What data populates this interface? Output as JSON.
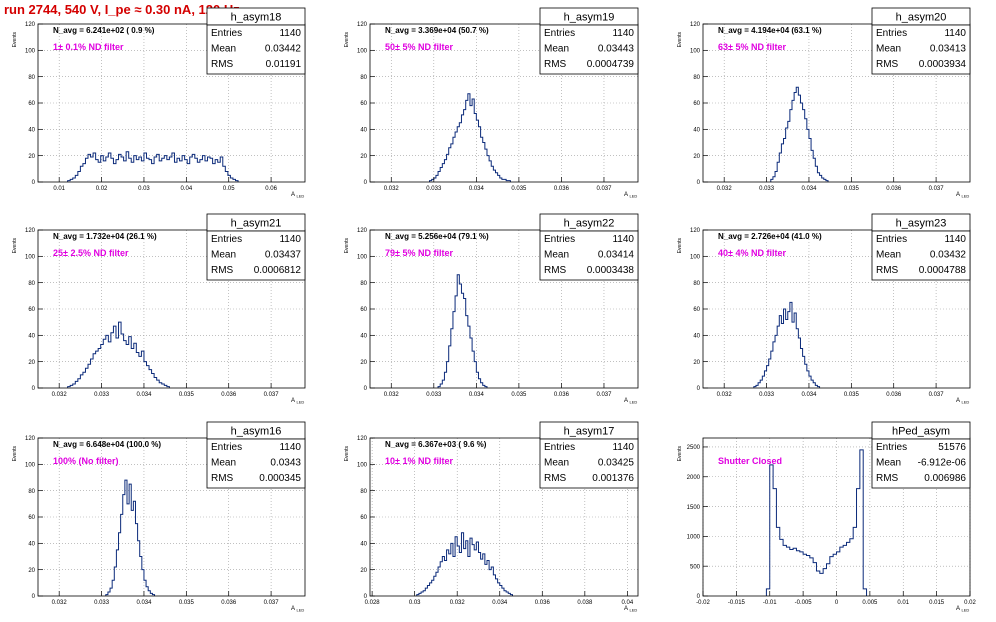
{
  "page_title": "run 2744,   540 V, I_pe ≈ 0.30 nA, 120 Hz",
  "chart_data": [
    {
      "type": "histogram",
      "name": "h_asym18",
      "stats": {
        "entries": "1140",
        "mean": "0.03442",
        "rms": "0.01191"
      },
      "navg": "N_avg = 6.241e+02 ( 0.9 %)",
      "filter": "1± 0.1% ND filter",
      "xlabel": "A",
      "xlabel_sub": "LED",
      "ylabel": "Events",
      "xlim": [
        0.005,
        0.068
      ],
      "ylim": [
        0,
        120
      ],
      "xticks": [
        0.01,
        0.02,
        0.03,
        0.04,
        0.05,
        0.06
      ],
      "xtick_labels": [
        "0.01",
        "0.02",
        "0.03",
        "0.04",
        "0.05",
        "0.06"
      ],
      "yticks": [
        0,
        20,
        40,
        60,
        80,
        100,
        120
      ],
      "ytick_labels": [
        "0",
        "20",
        "40",
        "60",
        "80",
        "100",
        "120"
      ],
      "grid": true,
      "bins": {
        "start": 0.012,
        "width": 0.0006,
        "values": [
          1,
          2,
          3,
          5,
          8,
          12,
          14,
          18,
          21,
          19,
          22,
          17,
          15,
          20,
          16,
          19,
          22,
          18,
          14,
          17,
          21,
          19,
          16,
          23,
          18,
          15,
          20,
          17,
          19,
          16,
          22,
          18,
          17,
          14,
          19,
          21,
          16,
          18,
          20,
          17,
          19,
          22,
          15,
          18,
          16,
          20,
          17,
          14,
          19,
          21,
          18,
          15,
          17,
          20,
          16,
          19,
          18,
          14,
          17,
          15,
          19,
          12,
          8,
          5,
          3,
          2,
          1
        ]
      }
    },
    {
      "type": "histogram",
      "name": "h_asym19",
      "stats": {
        "entries": "1140",
        "mean": "0.03443",
        "rms": "0.0004739"
      },
      "navg": "N_avg = 3.369e+04 (50.7 %)",
      "filter": "50± 5% ND filter",
      "xlabel": "A",
      "xlabel_sub": "LED",
      "ylabel": "Events",
      "xlim": [
        0.0315,
        0.0378
      ],
      "ylim": [
        0,
        120
      ],
      "xticks": [
        0.032,
        0.033,
        0.034,
        0.035,
        0.036,
        0.037
      ],
      "xtick_labels": [
        "0.032",
        "0.033",
        "0.034",
        "0.035",
        "0.036",
        "0.037"
      ],
      "yticks": [
        0,
        20,
        40,
        60,
        80,
        100,
        120
      ],
      "ytick_labels": [
        "0",
        "20",
        "40",
        "60",
        "80",
        "100",
        "120"
      ],
      "grid": true,
      "bins": {
        "start": 0.0329,
        "width": 5e-05,
        "values": [
          1,
          2,
          3,
          5,
          8,
          11,
          14,
          17,
          21,
          26,
          29,
          34,
          38,
          42,
          45,
          51,
          55,
          62,
          67,
          58,
          63,
          52,
          47,
          42,
          34,
          30,
          25,
          20,
          16,
          12,
          9,
          7,
          5,
          3,
          2,
          2,
          1,
          1
        ]
      }
    },
    {
      "type": "histogram",
      "name": "h_asym20",
      "stats": {
        "entries": "1140",
        "mean": "0.03413",
        "rms": "0.0003934"
      },
      "navg": "N_avg = 4.194e+04 (63.1 %)",
      "filter": "63± 5% ND filter",
      "xlabel": "A",
      "xlabel_sub": "LED",
      "ylabel": "Events",
      "xlim": [
        0.0315,
        0.0378
      ],
      "ylim": [
        0,
        120
      ],
      "xticks": [
        0.032,
        0.033,
        0.034,
        0.035,
        0.036,
        0.037
      ],
      "xtick_labels": [
        "0.032",
        "0.033",
        "0.034",
        "0.035",
        "0.036",
        "0.037"
      ],
      "yticks": [
        0,
        20,
        40,
        60,
        80,
        100,
        120
      ],
      "ytick_labels": [
        "0",
        "20",
        "40",
        "60",
        "80",
        "100",
        "120"
      ],
      "grid": true,
      "bins": {
        "start": 0.0331,
        "width": 5e-05,
        "values": [
          2,
          4,
          8,
          15,
          22,
          29,
          33,
          41,
          46,
          55,
          62,
          68,
          72,
          66,
          60,
          55,
          48,
          40,
          33,
          24,
          18,
          12,
          7,
          5,
          3,
          2,
          1
        ]
      }
    },
    {
      "type": "histogram",
      "name": "h_asym21",
      "stats": {
        "entries": "1140",
        "mean": "0.03437",
        "rms": "0.0006812"
      },
      "navg": "N_avg = 1.732e+04 (26.1 %)",
      "filter": "25± 2.5% ND filter",
      "xlabel": "A",
      "xlabel_sub": "LED",
      "ylabel": "Events",
      "xlim": [
        0.0315,
        0.0378
      ],
      "ylim": [
        0,
        120
      ],
      "xticks": [
        0.032,
        0.033,
        0.034,
        0.035,
        0.036,
        0.037
      ],
      "xtick_labels": [
        "0.032",
        "0.033",
        "0.034",
        "0.035",
        "0.036",
        "0.037"
      ],
      "yticks": [
        0,
        20,
        40,
        60,
        80,
        100,
        120
      ],
      "ytick_labels": [
        "0",
        "20",
        "40",
        "60",
        "80",
        "100",
        "120"
      ],
      "grid": true,
      "bins": {
        "start": 0.0322,
        "width": 6e-05,
        "values": [
          1,
          2,
          3,
          5,
          7,
          10,
          12,
          15,
          18,
          22,
          26,
          28,
          30,
          33,
          37,
          40,
          35,
          42,
          47,
          38,
          50,
          41,
          36,
          33,
          39,
          30,
          34,
          27,
          24,
          28,
          20,
          17,
          14,
          11,
          8,
          6,
          4,
          3,
          2,
          1
        ]
      }
    },
    {
      "type": "histogram",
      "name": "h_asym22",
      "stats": {
        "entries": "1140",
        "mean": "0.03414",
        "rms": "0.0003438"
      },
      "navg": "N_avg = 5.256e+04 (79.1 %)",
      "filter": "79± 5% ND filter",
      "xlabel": "A",
      "xlabel_sub": "LED",
      "ylabel": "Events",
      "xlim": [
        0.0315,
        0.0378
      ],
      "ylim": [
        0,
        120
      ],
      "xticks": [
        0.032,
        0.033,
        0.034,
        0.035,
        0.036,
        0.037
      ],
      "xtick_labels": [
        "0.032",
        "0.033",
        "0.034",
        "0.035",
        "0.036",
        "0.037"
      ],
      "yticks": [
        0,
        20,
        40,
        60,
        80,
        100,
        120
      ],
      "ytick_labels": [
        "0",
        "20",
        "40",
        "60",
        "80",
        "100",
        "120"
      ],
      "grid": true,
      "bins": {
        "start": 0.0331,
        "width": 5e-05,
        "values": [
          1,
          3,
          6,
          12,
          20,
          32,
          45,
          58,
          70,
          86,
          79,
          72,
          68,
          55,
          47,
          38,
          28,
          20,
          12,
          7,
          4,
          2,
          1
        ]
      }
    },
    {
      "type": "histogram",
      "name": "h_asym23",
      "stats": {
        "entries": "1140",
        "mean": "0.03432",
        "rms": "0.0004788"
      },
      "navg": "N_avg = 2.726e+04 (41.0 %)",
      "filter": "40± 4% ND filter",
      "xlabel": "A",
      "xlabel_sub": "LED",
      "ylabel": "Events",
      "xlim": [
        0.0315,
        0.0378
      ],
      "ylim": [
        0,
        120
      ],
      "xticks": [
        0.032,
        0.033,
        0.034,
        0.035,
        0.036,
        0.037
      ],
      "xtick_labels": [
        "0.032",
        "0.033",
        "0.034",
        "0.035",
        "0.036",
        "0.037"
      ],
      "yticks": [
        0,
        20,
        40,
        60,
        80,
        100,
        120
      ],
      "ytick_labels": [
        "0",
        "20",
        "40",
        "60",
        "80",
        "100",
        "120"
      ],
      "grid": true,
      "bins": {
        "start": 0.0327,
        "width": 5e-05,
        "values": [
          1,
          2,
          4,
          6,
          9,
          13,
          17,
          22,
          28,
          35,
          40,
          47,
          55,
          49,
          60,
          52,
          58,
          65,
          50,
          57,
          45,
          38,
          30,
          24,
          18,
          13,
          9,
          6,
          4,
          2,
          1
        ]
      }
    },
    {
      "type": "histogram",
      "name": "h_asym16",
      "stats": {
        "entries": "1140",
        "mean": "0.0343",
        "rms": "0.000345"
      },
      "navg": "N_avg = 6.648e+04 (100.0 %)",
      "filter": "100% (No filter)",
      "xlabel": "A",
      "xlabel_sub": "LED",
      "ylabel": "Events",
      "xlim": [
        0.0315,
        0.0378
      ],
      "ylim": [
        0,
        120
      ],
      "xticks": [
        0.032,
        0.033,
        0.034,
        0.035,
        0.036,
        0.037
      ],
      "xtick_labels": [
        "0.032",
        "0.033",
        "0.034",
        "0.035",
        "0.036",
        "0.037"
      ],
      "yticks": [
        0,
        20,
        40,
        60,
        80,
        100,
        120
      ],
      "ytick_labels": [
        "0",
        "20",
        "40",
        "60",
        "80",
        "100",
        "120"
      ],
      "grid": true,
      "bins": {
        "start": 0.0331,
        "width": 5e-05,
        "values": [
          1,
          3,
          6,
          12,
          22,
          35,
          48,
          62,
          77,
          88,
          70,
          85,
          65,
          72,
          55,
          42,
          30,
          20,
          12,
          7,
          4,
          2,
          1
        ]
      }
    },
    {
      "type": "histogram",
      "name": "h_asym17",
      "stats": {
        "entries": "1140",
        "mean": "0.03425",
        "rms": "0.001376"
      },
      "navg": "N_avg = 6.367e+03 ( 9.6 %)",
      "filter": "10± 1% ND filter",
      "xlabel": "A",
      "xlabel_sub": "LED",
      "ylabel": "Events",
      "xlim": [
        0.0279,
        0.0405
      ],
      "ylim": [
        0,
        120
      ],
      "xticks": [
        0.028,
        0.03,
        0.032,
        0.034,
        0.036,
        0.038,
        0.04
      ],
      "xtick_labels": [
        "0.028",
        "0.03",
        "0.032",
        "0.034",
        "0.036",
        "0.038",
        "0.04"
      ],
      "yticks": [
        0,
        20,
        40,
        60,
        80,
        100,
        120
      ],
      "ytick_labels": [
        "0",
        "20",
        "40",
        "60",
        "80",
        "100",
        "120"
      ],
      "grid": true,
      "bins": {
        "start": 0.0301,
        "width": 0.0001,
        "values": [
          1,
          2,
          3,
          4,
          6,
          8,
          10,
          12,
          15,
          18,
          22,
          26,
          30,
          27,
          35,
          32,
          40,
          30,
          45,
          38,
          33,
          48,
          36,
          42,
          30,
          44,
          39,
          35,
          41,
          33,
          28,
          32,
          24,
          27,
          20,
          22,
          16,
          13,
          10,
          8,
          6,
          4,
          3,
          2,
          1
        ]
      }
    },
    {
      "type": "histogram",
      "name": "hPed_asym",
      "stats": {
        "entries": "51576",
        "mean": "-6.912e-06",
        "rms": "0.006986"
      },
      "navg": "",
      "filter": "Shutter Closed",
      "xlabel": "A",
      "xlabel_sub": "LED",
      "ylabel": "Events",
      "xlim": [
        -0.02,
        0.02
      ],
      "ylim": [
        0,
        2650
      ],
      "xticks": [
        -0.02,
        -0.015,
        -0.01,
        -0.005,
        0,
        0.005,
        0.01,
        0.015,
        0.02
      ],
      "xtick_labels": [
        "-0.02",
        "-0.015",
        "-0.01",
        "-0.005",
        "0",
        "0.005",
        "0.01",
        "0.015",
        "0.02"
      ],
      "yticks": [
        0,
        500,
        1000,
        1500,
        2000,
        2500
      ],
      "ytick_labels": [
        "0",
        "500",
        "1000",
        "1500",
        "2000",
        "2500"
      ],
      "grid": true,
      "bins": {
        "start": -0.0105,
        "width": 0.0005,
        "values": [
          120,
          2200,
          1800,
          1150,
          950,
          850,
          820,
          780,
          800,
          760,
          740,
          700,
          680,
          640,
          560,
          420,
          380,
          460,
          540,
          660,
          700,
          740,
          820,
          850,
          900,
          960,
          1150,
          1800,
          2450,
          120
        ]
      }
    }
  ]
}
